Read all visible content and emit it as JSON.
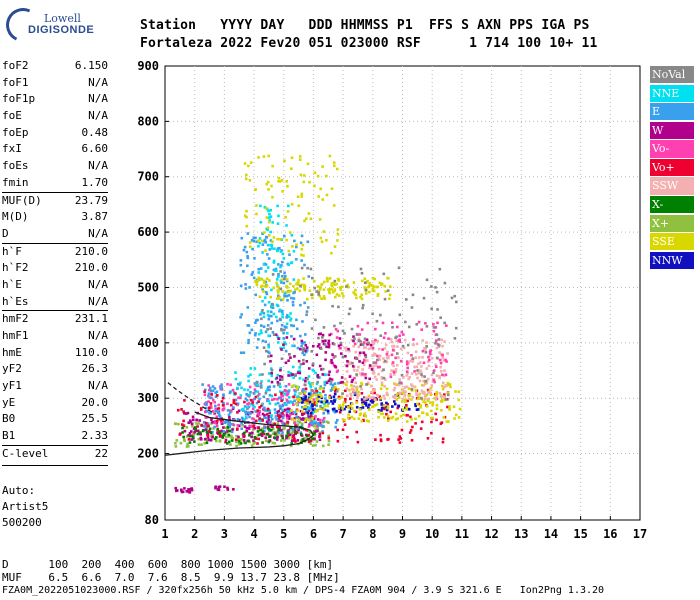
{
  "logo": {
    "brand": "Lowell",
    "product": "DIGISONDE"
  },
  "header": {
    "labels": "Station   YYYY DAY   DDD HHMMSS P1  FFS S AXN PPS IGA PS",
    "values": "Fortaleza 2022 Fev20 051 023000 RSF      1 714 100 10+ 11"
  },
  "params": [
    {
      "name": "foF2",
      "value": "6.150"
    },
    {
      "name": "foF1",
      "value": "N/A"
    },
    {
      "name": "foF1p",
      "value": "N/A"
    },
    {
      "name": "foE",
      "value": "N/A"
    },
    {
      "name": "foEp",
      "value": "0.48"
    },
    {
      "name": "fxI",
      "value": "6.60"
    },
    {
      "name": "foEs",
      "value": "N/A"
    },
    {
      "name": "fmin",
      "value": "1.70"
    },
    {
      "name": "MUF(D)",
      "value": "23.79",
      "sep": true
    },
    {
      "name": "M(D)",
      "value": "3.87"
    },
    {
      "name": "D",
      "value": "N/A"
    },
    {
      "name": "h`F",
      "value": "210.0",
      "sep": true
    },
    {
      "name": "h`F2",
      "value": "210.0"
    },
    {
      "name": "h`E",
      "value": "N/A"
    },
    {
      "name": "h`Es",
      "value": "N/A"
    },
    {
      "name": "hmF2",
      "value": "231.1",
      "sep": true
    },
    {
      "name": "hmF1",
      "value": "N/A"
    },
    {
      "name": "hmE",
      "value": "110.0"
    },
    {
      "name": "yF2",
      "value": "26.3"
    },
    {
      "name": "yF1",
      "value": "N/A"
    },
    {
      "name": "yE",
      "value": "20.0"
    },
    {
      "name": "B0",
      "value": "25.5"
    },
    {
      "name": "B1",
      "value": "2.33"
    },
    {
      "name": "C-level",
      "value": "22",
      "sep": true
    }
  ],
  "autoscale": {
    "line1": "Auto:",
    "line2": "Artist5",
    "line3": "500200"
  },
  "legend": [
    {
      "label": "NoVal",
      "bg": "#888888",
      "fg": "#ffffff"
    },
    {
      "label": "NNE",
      "bg": "#00e0f0",
      "fg": "#ffffff"
    },
    {
      "label": "E",
      "bg": "#3aa0ee",
      "fg": "#ffffff"
    },
    {
      "label": "W",
      "bg": "#b0008c",
      "fg": "#ffffff"
    },
    {
      "label": "Vo-",
      "bg": "#ff40b0",
      "fg": "#ffffff"
    },
    {
      "label": "Vo+",
      "bg": "#ee0030",
      "fg": "#ffffff"
    },
    {
      "label": "SSW",
      "bg": "#f4b0b0",
      "fg": "#ffffff"
    },
    {
      "label": "X-",
      "bg": "#008000",
      "fg": "#ffffff"
    },
    {
      "label": "X+",
      "bg": "#90c040",
      "fg": "#ffffff"
    },
    {
      "label": "SSE",
      "bg": "#d8d800",
      "fg": "#ffffff"
    },
    {
      "label": "NNW",
      "bg": "#1010c0",
      "fg": "#ffffff"
    }
  ],
  "footer": {
    "d_row": "D      100  200  400  600  800 1000 1500 3000 [km]",
    "muf_row": "MUF    6.5  6.6  7.0  7.6  8.5  9.9 13.7 23.8 [MHz]",
    "info_row": "FZA0M_2022051023000.RSF / 320fx256h 50 kHz 5.0 km / DPS-4 FZA0M 904 / 3.9 S 321.6 E   Ion2Png 1.3.20"
  },
  "chart_data": {
    "type": "scatter",
    "xlim": [
      1,
      17
    ],
    "ylim": [
      80,
      900
    ],
    "x_ticks": [
      1,
      2,
      3,
      4,
      5,
      6,
      7,
      8,
      9,
      10,
      11,
      12,
      13,
      14,
      15,
      16,
      17
    ],
    "y_ticks": [
      80,
      200,
      300,
      400,
      500,
      600,
      700,
      800,
      900
    ],
    "grid": "dotted",
    "legend_position": "right",
    "clusters": [
      {
        "name": "X+",
        "x0": 1.3,
        "x1": 6.5,
        "y0": 215,
        "y1": 260,
        "n": 160
      },
      {
        "name": "W",
        "x0": 1.6,
        "x1": 6.2,
        "y0": 225,
        "y1": 285,
        "n": 220
      },
      {
        "name": "Vo-",
        "x0": 2.3,
        "x1": 6.4,
        "y0": 250,
        "y1": 330,
        "n": 150
      },
      {
        "name": "E",
        "x0": 2.2,
        "x1": 6.8,
        "y0": 240,
        "y1": 330,
        "n": 220
      },
      {
        "name": "NNE",
        "x0": 3.3,
        "x1": 6.4,
        "y0": 260,
        "y1": 360,
        "n": 110
      },
      {
        "name": "Vo+",
        "x0": 1.4,
        "x1": 10.6,
        "y0": 220,
        "y1": 320,
        "n": 200
      },
      {
        "name": "NNW",
        "x0": 5.5,
        "x1": 9.5,
        "y0": 275,
        "y1": 310,
        "n": 90
      },
      {
        "name": "SSE",
        "x0": 5.2,
        "x1": 10.9,
        "y0": 260,
        "y1": 330,
        "n": 220
      },
      {
        "name": "SSW",
        "x0": 7.0,
        "x1": 10.5,
        "y0": 300,
        "y1": 410,
        "n": 260
      },
      {
        "name": "Vo-",
        "x0": 6.5,
        "x1": 10.5,
        "y0": 330,
        "y1": 440,
        "n": 90
      },
      {
        "name": "X-",
        "x0": 1.5,
        "x1": 6.0,
        "y0": 220,
        "y1": 250,
        "n": 70
      },
      {
        "name": "E",
        "x0": 3.5,
        "x1": 5.8,
        "y0": 380,
        "y1": 600,
        "n": 170
      },
      {
        "name": "NNE",
        "x0": 4.1,
        "x1": 5.3,
        "y0": 390,
        "y1": 650,
        "n": 90
      },
      {
        "name": "SSE",
        "x0": 4.0,
        "x1": 8.6,
        "y0": 480,
        "y1": 520,
        "n": 150
      },
      {
        "name": "SSE",
        "x0": 3.6,
        "x1": 6.8,
        "y0": 560,
        "y1": 740,
        "n": 100
      },
      {
        "name": "W",
        "x0": 4.5,
        "x1": 8.0,
        "y0": 330,
        "y1": 420,
        "n": 110
      },
      {
        "name": "NoVal",
        "x0": 4.0,
        "x1": 10.8,
        "y0": 300,
        "y1": 540,
        "n": 160
      },
      {
        "name": "W",
        "x0": 1.3,
        "x1": 1.9,
        "y0": 132,
        "y1": 140,
        "n": 18
      },
      {
        "name": "W",
        "x0": 2.6,
        "x1": 3.3,
        "y0": 136,
        "y1": 143,
        "n": 10
      }
    ],
    "lines": [
      {
        "name": "profile",
        "style": "solid",
        "color": "#202020",
        "points": [
          [
            1.0,
            197
          ],
          [
            1.5,
            200
          ],
          [
            2.0,
            203
          ],
          [
            2.5,
            206
          ],
          [
            3.0,
            208
          ],
          [
            3.5,
            210
          ],
          [
            4.0,
            211
          ],
          [
            4.5,
            212
          ],
          [
            5.0,
            214
          ],
          [
            5.5,
            218
          ],
          [
            5.8,
            225
          ],
          [
            6.0,
            233
          ],
          [
            5.9,
            242
          ],
          [
            5.5,
            248
          ],
          [
            4.5,
            252
          ],
          [
            3.5,
            258
          ],
          [
            2.5,
            265
          ],
          [
            2.0,
            275
          ]
        ]
      },
      {
        "name": "extrapolation",
        "style": "dashed",
        "color": "#202020",
        "points": [
          [
            1.1,
            328
          ],
          [
            1.4,
            315
          ],
          [
            1.8,
            300
          ],
          [
            2.1,
            290
          ],
          [
            2.4,
            280
          ],
          [
            2.7,
            272
          ]
        ]
      }
    ]
  }
}
